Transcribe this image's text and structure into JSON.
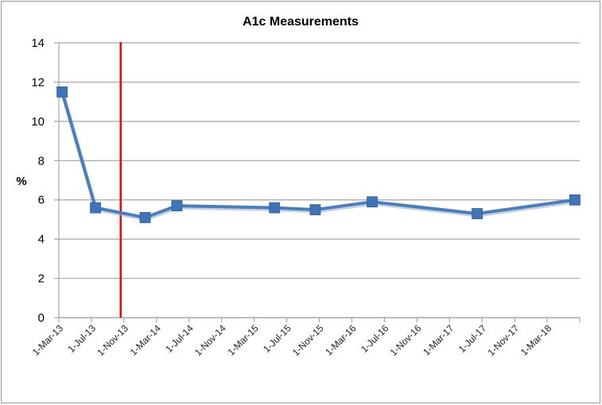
{
  "chart_data": {
    "type": "line",
    "title": "A1c Measurements",
    "xlabel": "",
    "ylabel": "%",
    "ylim": [
      0,
      14
    ],
    "yticks": [
      0,
      2,
      4,
      6,
      8,
      10,
      12,
      14
    ],
    "grid": {
      "horizontal": true,
      "vertical": false
    },
    "legend": null,
    "x_tick_labels": [
      "1-Mar-13",
      "1-Jul-13",
      "1-Nov-13",
      "1-Mar-14",
      "1-Jul-14",
      "1-Nov-14",
      "1-Mar-15",
      "1-Jul-15",
      "1-Nov-15",
      "1-Mar-16",
      "1-Jul-16",
      "1-Nov-16",
      "1-Mar-17",
      "1-Jul-17",
      "1-Nov-17",
      "1-Mar-18"
    ],
    "x_range_months_from_start": [
      0,
      64
    ],
    "series": [
      {
        "name": "A1c",
        "color": "#4a7ebb",
        "marker": "square",
        "points": [
          {
            "x_approx": "2013-03",
            "month_offset": 0.4,
            "y": 11.5
          },
          {
            "x_approx": "2013-07",
            "month_offset": 4.5,
            "y": 5.6
          },
          {
            "x_approx": "2014-01",
            "month_offset": 10.6,
            "y": 5.1
          },
          {
            "x_approx": "2014-05",
            "month_offset": 14.5,
            "y": 5.7
          },
          {
            "x_approx": "2015-05",
            "month_offset": 26.5,
            "y": 5.6
          },
          {
            "x_approx": "2015-10",
            "month_offset": 31.5,
            "y": 5.5
          },
          {
            "x_approx": "2016-05",
            "month_offset": 38.5,
            "y": 5.9
          },
          {
            "x_approx": "2017-06",
            "month_offset": 51.4,
            "y": 5.3
          },
          {
            "x_approx": "2018-06",
            "month_offset": 63.4,
            "y": 6.0
          }
        ]
      }
    ],
    "annotations": [
      {
        "type": "vertical-line",
        "color": "#ff0000",
        "x_approx": "2013-10",
        "month_offset": 7.6
      }
    ]
  },
  "colors": {
    "series": "#4a7ebb",
    "marker": "#3f74b8",
    "marker_edge": "#2f5f9e",
    "marker_shadow": "#8ba4c8",
    "annotation": "#ff0000",
    "grid": "#a6a6a6",
    "axis": "#a6a6a6",
    "frame": "#9a9a9a"
  }
}
